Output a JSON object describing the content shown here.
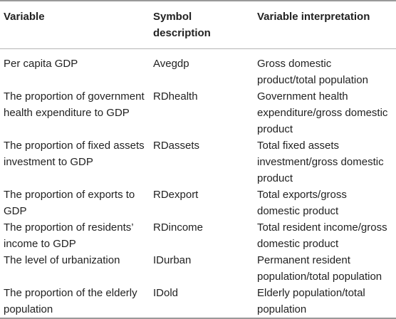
{
  "headers": {
    "variable": "Variable",
    "symbol": "Symbol description",
    "interpretation": "Variable interpretation"
  },
  "rows": [
    {
      "variable": "Per capita GDP",
      "symbol": "Avegdp",
      "interpretation": "Gross domestic product/total population"
    },
    {
      "variable": "The proportion of government health expenditure to GDP",
      "symbol": "RDhealth",
      "interpretation": "Government health expenditure/gross domestic product"
    },
    {
      "variable": "The proportion of fixed assets investment to GDP",
      "symbol": "RDassets",
      "interpretation": "Total fixed assets investment/gross domestic product"
    },
    {
      "variable": "The proportion of exports to GDP",
      "symbol": "RDexport",
      "interpretation": "Total exports/gross domestic product"
    },
    {
      "variable": "The proportion of residents’ income to GDP",
      "symbol": "RDincome",
      "interpretation": "Total resident income/gross domestic product"
    },
    {
      "variable": "The level of urbanization",
      "symbol": "IDurban",
      "interpretation": "Permanent resident population/total population"
    },
    {
      "variable": "The proportion of the elderly population",
      "symbol": "IDold",
      "interpretation": "Elderly population/total population"
    }
  ]
}
